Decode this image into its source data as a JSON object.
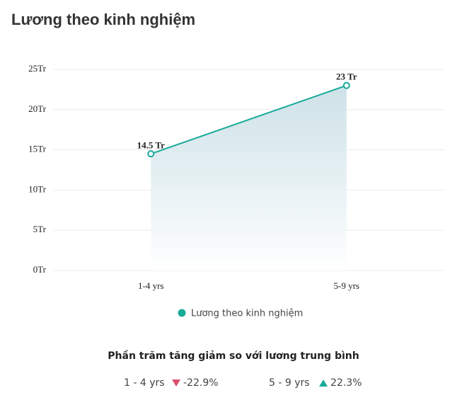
{
  "chart_data": {
    "type": "area",
    "title": "Lương theo kinh nghiệm",
    "categories": [
      "1-4 yrs",
      "5-9 yrs"
    ],
    "series": [
      {
        "name": "Lương theo kinh nghiệm",
        "color": "#1aaa9a",
        "values": [
          14.5,
          23
        ],
        "value_labels": [
          "14.5 Tr",
          "23 Tr"
        ]
      }
    ],
    "ylim": [
      0,
      25
    ],
    "yticks": [
      {
        "value": 0,
        "label": "0Tr"
      },
      {
        "value": 5,
        "label": "5Tr"
      },
      {
        "value": 10,
        "label": "10Tr"
      },
      {
        "value": 15,
        "label": "15Tr"
      },
      {
        "value": 20,
        "label": "20Tr"
      },
      {
        "value": 25,
        "label": "25Tr"
      }
    ],
    "grid": true
  },
  "comparison": {
    "title": "Phần trăm tăng giảm so với lương trung bình",
    "items": [
      {
        "label": "1 - 4 yrs",
        "value": -22.9,
        "value_label": "-22.9%"
      },
      {
        "label": "5 - 9 yrs",
        "value": 22.3,
        "value_label": "22.3%"
      }
    ]
  }
}
